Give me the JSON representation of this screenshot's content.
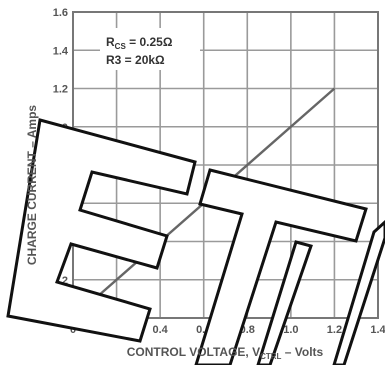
{
  "chart_data": {
    "type": "line",
    "xlabel_main": "CONTROL VOLTAGE, V",
    "xlabel_sub": "CTRL",
    "xlabel_unit": " – Volts",
    "ylabel": "CHARGE CURRENT – Amps",
    "xlim": [
      0,
      1.4
    ],
    "ylim": [
      0,
      1.6
    ],
    "x_ticks": [
      "0",
      "0.2",
      "0.4",
      "0.6",
      "0.8",
      "1.0",
      "1.2",
      "1.4"
    ],
    "y_ticks": [
      "0",
      "0.2",
      "0.4",
      "0.6",
      "0.8",
      "1.0",
      "1.2",
      "1.4",
      "1.6"
    ],
    "grid": true,
    "annotation_line1_main": "R",
    "annotation_line1_sub": "CS",
    "annotation_line1_value": " = 0.25Ω",
    "annotation_line2": "R3 = 20kΩ",
    "series": [
      {
        "x": [
          0.1,
          1.2
        ],
        "y": [
          0.1,
          1.2
        ]
      }
    ]
  },
  "watermark": {
    "fill": "#ffffff",
    "stroke": "#111111",
    "text": "ET"
  }
}
